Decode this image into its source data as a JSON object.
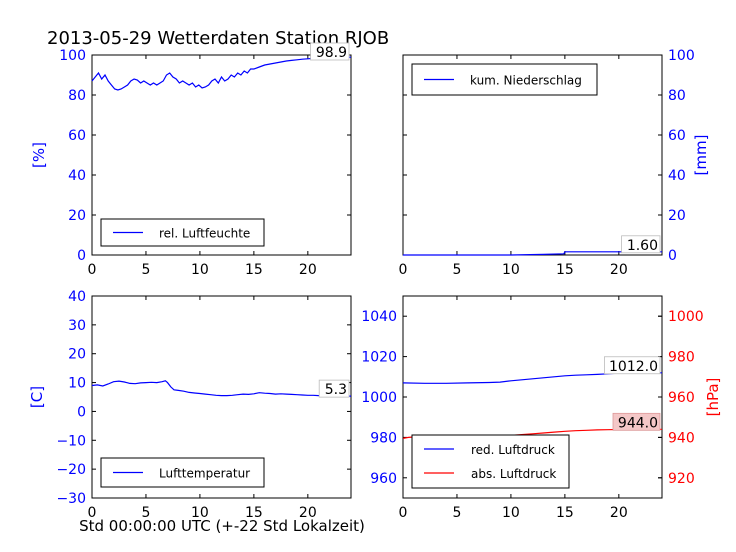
{
  "figure": {
    "title": "2013-05-29 Wetterdaten Station RJOB",
    "xlabel": "Std 00:00:00 UTC (+-22 Std Lokalzeit)"
  },
  "colors": {
    "blue": "#0000ff",
    "red": "#ff0000",
    "black": "#000000"
  },
  "chart_data": [
    {
      "id": "humidity",
      "type": "line",
      "ylabel": "[%]",
      "xlim": [
        0,
        24
      ],
      "ylim": [
        0,
        100
      ],
      "xticks": [
        "0",
        "5",
        "10",
        "15",
        "20"
      ],
      "yticks": [
        "0",
        "20",
        "40",
        "60",
        "80",
        "100"
      ],
      "legend": "bottom-left",
      "last_value_label": "98.9",
      "series": [
        {
          "name": "rel. Luftfeuchte",
          "color": "#0000ff",
          "x": [
            0,
            0.3,
            0.6,
            0.9,
            1.2,
            1.5,
            1.8,
            2.1,
            2.4,
            2.7,
            3.0,
            3.3,
            3.6,
            3.9,
            4.2,
            4.5,
            4.8,
            5.1,
            5.4,
            5.7,
            6.0,
            6.3,
            6.6,
            6.9,
            7.2,
            7.5,
            7.8,
            8.1,
            8.4,
            8.7,
            9.0,
            9.3,
            9.6,
            9.9,
            10.2,
            10.5,
            10.8,
            11.1,
            11.4,
            11.7,
            12.0,
            12.3,
            12.6,
            12.9,
            13.2,
            13.5,
            13.8,
            14.1,
            14.4,
            14.7,
            15.0,
            15.5,
            16.0,
            16.5,
            17.0,
            17.5,
            18.0,
            18.5,
            19.0,
            19.5,
            20.0,
            20.5,
            21.0,
            21.5,
            22.0,
            22.5,
            23.0,
            23.5,
            24.0
          ],
          "y": [
            87,
            89,
            91,
            88,
            90,
            87,
            85,
            83,
            82.5,
            83,
            84,
            85,
            87,
            88,
            87.5,
            86,
            87,
            86,
            85,
            86,
            85,
            86,
            87,
            90,
            91,
            89,
            88,
            86,
            87,
            86,
            85,
            86,
            84,
            85,
            83.5,
            84,
            85,
            87,
            88,
            86,
            89,
            87,
            88,
            90,
            89,
            91,
            90,
            92,
            91,
            93,
            93,
            94,
            95,
            95.5,
            96,
            96.5,
            97,
            97.3,
            97.6,
            97.9,
            98.1,
            98.3,
            98.4,
            98.5,
            98.6,
            98.7,
            98.8,
            98.9,
            98.9
          ]
        }
      ]
    },
    {
      "id": "precipitation",
      "type": "line",
      "ylabel": "[mm]",
      "xlim": [
        0,
        24
      ],
      "ylim": [
        0,
        100
      ],
      "xticks": [
        "0",
        "5",
        "10",
        "15",
        "20"
      ],
      "yticks": [
        "0",
        "20",
        "40",
        "60",
        "80",
        "100"
      ],
      "legend": "top-left",
      "last_value_label": "1.60",
      "series": [
        {
          "name": "kum. Niederschlag",
          "color": "#0000ff",
          "x": [
            0,
            10,
            13,
            14.9,
            15.0,
            24
          ],
          "y": [
            0,
            0,
            0.3,
            0.6,
            1.6,
            1.6
          ]
        }
      ]
    },
    {
      "id": "temperature",
      "type": "line",
      "ylabel": "[C]",
      "xlim": [
        0,
        24
      ],
      "ylim": [
        -30,
        40
      ],
      "xticks": [
        "0",
        "5",
        "10",
        "15",
        "20"
      ],
      "yticks": [
        "−30",
        "−20",
        "−10",
        "0",
        "10",
        "20",
        "30",
        "40"
      ],
      "legend": "bottom-left",
      "last_value_label": "5.3",
      "series": [
        {
          "name": "Lufttemperatur",
          "color": "#0000ff",
          "x": [
            0,
            0.5,
            1.0,
            1.5,
            2.0,
            2.5,
            3.0,
            3.5,
            4.0,
            4.5,
            5.0,
            5.5,
            6.0,
            6.5,
            6.8,
            7.0,
            7.3,
            7.6,
            8.0,
            8.5,
            9.0,
            9.5,
            10.0,
            10.5,
            11.0,
            11.5,
            12.0,
            12.5,
            13.0,
            13.5,
            14.0,
            14.5,
            15.0,
            15.5,
            16.0,
            16.5,
            17.0,
            17.5,
            18.0,
            18.5,
            19.0,
            19.5,
            20.0,
            20.5,
            21.0,
            21.5,
            22.0,
            22.5,
            23.0,
            23.5,
            24.0
          ],
          "y": [
            9.0,
            9.2,
            8.8,
            9.5,
            10.3,
            10.5,
            10.2,
            9.7,
            9.6,
            9.9,
            10.0,
            10.1,
            10.0,
            10.3,
            10.6,
            10.0,
            8.5,
            7.5,
            7.3,
            7.0,
            6.6,
            6.4,
            6.2,
            6.0,
            5.8,
            5.6,
            5.5,
            5.5,
            5.6,
            5.8,
            6.0,
            5.9,
            6.1,
            6.5,
            6.3,
            6.2,
            6.0,
            6.1,
            6.0,
            5.9,
            5.8,
            5.7,
            5.6,
            5.6,
            5.5,
            5.5,
            5.4,
            5.4,
            5.4,
            5.3,
            5.3
          ]
        }
      ]
    },
    {
      "id": "pressure",
      "type": "line",
      "ylabel_right": "[hPa]",
      "xlim": [
        0,
        24
      ],
      "ylim": [
        950,
        1050
      ],
      "ylim_right": [
        910,
        1010
      ],
      "xticks": [
        "0",
        "5",
        "10",
        "15",
        "20"
      ],
      "yticks": [
        "960",
        "980",
        "1000",
        "1020",
        "1040"
      ],
      "yticks_right": [
        "920",
        "940",
        "960",
        "980",
        "1000"
      ],
      "legend": "bottom-left",
      "last_value_label": "1012.0",
      "last_value_label_right": "944.0",
      "series": [
        {
          "name": "red. Luftdruck",
          "color": "#0000ff",
          "axis": "left",
          "x": [
            0,
            2,
            4,
            6,
            8,
            9,
            10,
            11,
            12,
            13,
            14,
            15,
            16,
            17,
            18,
            19,
            20,
            21,
            22,
            23,
            24
          ],
          "y": [
            1007.0,
            1006.8,
            1006.8,
            1007.0,
            1007.2,
            1007.4,
            1008.0,
            1008.5,
            1009.0,
            1009.5,
            1010.0,
            1010.5,
            1010.8,
            1011.0,
            1011.2,
            1011.5,
            1011.8,
            1011.9,
            1012.0,
            1012.0,
            1012.0
          ]
        },
        {
          "name": "abs. Luftdruck",
          "color": "#ff0000",
          "axis": "right",
          "x": [
            0,
            0.5,
            1,
            2,
            4,
            6,
            8,
            9,
            10,
            11,
            12,
            13,
            14,
            15,
            16,
            17,
            18,
            19,
            20,
            21,
            22,
            23,
            24
          ],
          "y": [
            939.5,
            940.0,
            940.2,
            940.2,
            940.3,
            940.4,
            940.5,
            940.7,
            941.0,
            941.4,
            941.8,
            942.2,
            942.6,
            943.0,
            943.3,
            943.5,
            943.7,
            943.8,
            943.9,
            944.0,
            944.0,
            944.0,
            944.0
          ]
        }
      ]
    }
  ]
}
